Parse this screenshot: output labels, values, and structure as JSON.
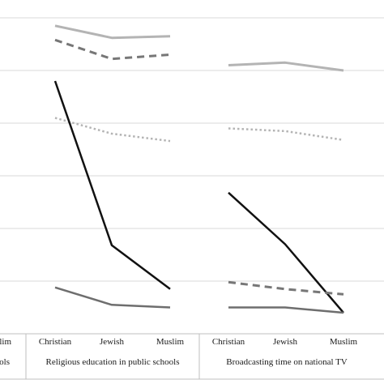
{
  "chart_data": {
    "type": "line",
    "categories": [
      "Christian",
      "Jewish",
      "Muslim"
    ],
    "groups": [
      {
        "label": "ols",
        "first_category_label": "slim",
        "series": []
      },
      {
        "label": "Religious education in public schools",
        "series": [
          {
            "values": [
              5.85,
              5.62,
              5.65
            ],
            "color": "#b4b4b4",
            "dash": "solid",
            "width": 3
          },
          {
            "values": [
              5.58,
              5.22,
              5.3
            ],
            "color": "#777777",
            "dash": "dashed",
            "width": 3
          },
          {
            "values": [
              4.1,
              3.8,
              3.66
            ],
            "color": "#b4b4b4",
            "dash": "dotted",
            "width": 2.5
          },
          {
            "values": [
              4.8,
              1.68,
              0.85
            ],
            "color": "#111111",
            "dash": "solid",
            "width": 2.5
          },
          {
            "values": [
              0.88,
              0.55,
              0.5
            ],
            "color": "#6e6e6e",
            "dash": "solid",
            "width": 2.5
          }
        ]
      },
      {
        "label": "Broadcasting time on national TV",
        "series": [
          {
            "values": [
              5.1,
              5.15,
              5.0
            ],
            "color": "#b4b4b4",
            "dash": "solid",
            "width": 3
          },
          {
            "values": [
              3.9,
              3.85,
              3.68
            ],
            "color": "#b4b4b4",
            "dash": "dotted",
            "width": 2.5
          },
          {
            "values": [
              2.68,
              1.7,
              0.4
            ],
            "color": "#111111",
            "dash": "solid",
            "width": 2.5
          },
          {
            "values": [
              0.98,
              0.85,
              0.75
            ],
            "color": "#777777",
            "dash": "dashed",
            "width": 3
          },
          {
            "values": [
              0.5,
              0.5,
              0.4
            ],
            "color": "#6e6e6e",
            "dash": "solid",
            "width": 2.5
          }
        ]
      }
    ],
    "ylim": [
      0,
      6.5
    ],
    "yticks": [
      1,
      2,
      3,
      4,
      5,
      6
    ],
    "grid": true,
    "legend": "none"
  }
}
